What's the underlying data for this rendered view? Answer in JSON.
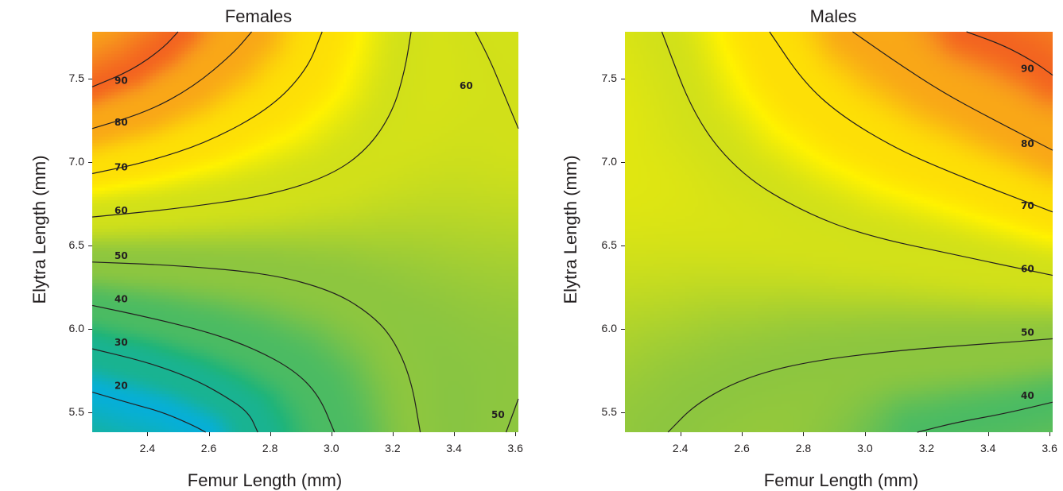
{
  "chart_data": [
    {
      "type": "heatmap",
      "title": "Females",
      "xlabel": "Femur Length (mm)",
      "ylabel": "Elytra Length (mm)",
      "xlim": [
        2.22,
        3.61
      ],
      "ylim": [
        5.38,
        7.78
      ],
      "xticks": [
        "2.4",
        "2.6",
        "2.8",
        "3.0",
        "3.2",
        "3.4",
        "3.6"
      ],
      "yticks": [
        "5.5",
        "6.0",
        "6.5",
        "7.0",
        "7.5"
      ],
      "colorscale": [
        "#2c2f8f",
        "#00aeef",
        "#1fb47a",
        "#8dc63f",
        "#fff200",
        "#f7941d",
        "#ed1c24"
      ],
      "contours": [
        {
          "label": "20",
          "level": 20,
          "points": [
            [
              2.22,
              5.62
            ],
            [
              2.35,
              5.55
            ],
            [
              2.45,
              5.5
            ],
            [
              2.55,
              5.42
            ],
            [
              2.59,
              5.38
            ]
          ]
        },
        {
          "label": "30",
          "level": 30,
          "points": [
            [
              2.22,
              5.88
            ],
            [
              2.4,
              5.8
            ],
            [
              2.55,
              5.7
            ],
            [
              2.65,
              5.6
            ],
            [
              2.73,
              5.5
            ],
            [
              2.76,
              5.38
            ]
          ]
        },
        {
          "label": "40",
          "level": 40,
          "points": [
            [
              2.22,
              6.14
            ],
            [
              2.4,
              6.07
            ],
            [
              2.6,
              5.98
            ],
            [
              2.75,
              5.88
            ],
            [
              2.88,
              5.75
            ],
            [
              2.96,
              5.6
            ],
            [
              3.01,
              5.38
            ]
          ]
        },
        {
          "label": "50",
          "level": 50,
          "points": [
            [
              2.22,
              6.4
            ],
            [
              2.5,
              6.38
            ],
            [
              2.8,
              6.33
            ],
            [
              3.0,
              6.23
            ],
            [
              3.12,
              6.1
            ],
            [
              3.2,
              5.95
            ],
            [
              3.26,
              5.7
            ],
            [
              3.29,
              5.38
            ]
          ]
        },
        {
          "label": "60",
          "level": 60,
          "points": [
            [
              2.22,
              6.67
            ],
            [
              2.5,
              6.72
            ],
            [
              2.8,
              6.8
            ],
            [
              3.0,
              6.92
            ],
            [
              3.12,
              7.08
            ],
            [
              3.2,
              7.3
            ],
            [
              3.24,
              7.55
            ],
            [
              3.26,
              7.78
            ]
          ]
        },
        {
          "label": "70",
          "level": 70,
          "points": [
            [
              2.22,
              6.93
            ],
            [
              2.4,
              7.0
            ],
            [
              2.6,
              7.12
            ],
            [
              2.8,
              7.32
            ],
            [
              2.92,
              7.55
            ],
            [
              2.97,
              7.78
            ]
          ]
        },
        {
          "label": "80",
          "level": 80,
          "points": [
            [
              2.22,
              7.2
            ],
            [
              2.4,
              7.3
            ],
            [
              2.55,
              7.45
            ],
            [
              2.68,
              7.65
            ],
            [
              2.74,
              7.78
            ]
          ]
        },
        {
          "label": "90",
          "level": 90,
          "points": [
            [
              2.22,
              7.45
            ],
            [
              2.35,
              7.55
            ],
            [
              2.45,
              7.68
            ],
            [
              2.5,
              7.78
            ]
          ]
        },
        {
          "label": "60",
          "level": 60,
          "points": [
            [
              3.47,
              7.78
            ],
            [
              3.52,
              7.6
            ],
            [
              3.56,
              7.42
            ],
            [
              3.61,
              7.2
            ]
          ]
        },
        {
          "label": "50",
          "level": 50,
          "points": [
            [
              3.57,
              5.38
            ],
            [
              3.59,
              5.48
            ],
            [
              3.61,
              5.58
            ]
          ]
        }
      ]
    },
    {
      "type": "heatmap",
      "title": "Males",
      "xlabel": "Femur Length (mm)",
      "ylabel": "Elytra Length (mm)",
      "xlim": [
        2.22,
        3.61
      ],
      "ylim": [
        5.38,
        7.78
      ],
      "xticks": [
        "2.4",
        "2.6",
        "2.8",
        "3.0",
        "3.2",
        "3.4",
        "3.6"
      ],
      "yticks": [
        "5.5",
        "6.0",
        "6.5",
        "7.0",
        "7.5"
      ],
      "colorscale": [
        "#2c2f8f",
        "#00aeef",
        "#1fb47a",
        "#8dc63f",
        "#fff200",
        "#f7941d",
        "#ed1c24"
      ],
      "contours": [
        {
          "label": "90",
          "level": 90,
          "points": [
            [
              3.33,
              7.78
            ],
            [
              3.45,
              7.7
            ],
            [
              3.55,
              7.6
            ],
            [
              3.61,
              7.52
            ]
          ]
        },
        {
          "label": "80",
          "level": 80,
          "points": [
            [
              2.96,
              7.78
            ],
            [
              3.1,
              7.6
            ],
            [
              3.25,
              7.42
            ],
            [
              3.4,
              7.27
            ],
            [
              3.61,
              7.07
            ]
          ]
        },
        {
          "label": "70",
          "level": 70,
          "points": [
            [
              2.69,
              7.78
            ],
            [
              2.8,
              7.48
            ],
            [
              2.92,
              7.28
            ],
            [
              3.1,
              7.08
            ],
            [
              3.3,
              6.92
            ],
            [
              3.61,
              6.7
            ]
          ]
        },
        {
          "label": "60",
          "level": 60,
          "points": [
            [
              2.34,
              7.78
            ],
            [
              2.45,
              7.25
            ],
            [
              2.6,
              6.92
            ],
            [
              2.8,
              6.7
            ],
            [
              3.0,
              6.56
            ],
            [
              3.3,
              6.44
            ],
            [
              3.61,
              6.32
            ]
          ]
        },
        {
          "label": "50",
          "level": 50,
          "points": [
            [
              2.36,
              5.38
            ],
            [
              2.45,
              5.55
            ],
            [
              2.6,
              5.7
            ],
            [
              2.8,
              5.8
            ],
            [
              3.1,
              5.87
            ],
            [
              3.4,
              5.91
            ],
            [
              3.61,
              5.94
            ]
          ]
        },
        {
          "label": "40",
          "level": 40,
          "points": [
            [
              3.17,
              5.38
            ],
            [
              3.3,
              5.44
            ],
            [
              3.45,
              5.49
            ],
            [
              3.61,
              5.56
            ]
          ]
        }
      ]
    }
  ]
}
